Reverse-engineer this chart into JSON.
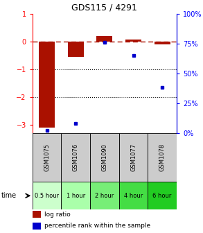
{
  "title": "GDS115 / 4291",
  "samples": [
    "GSM1075",
    "GSM1076",
    "GSM1090",
    "GSM1077",
    "GSM1078"
  ],
  "time_labels": [
    "0.5 hour",
    "1 hour",
    "2 hour",
    "4 hour",
    "6 hour"
  ],
  "time_colors": [
    "#ccffcc",
    "#aaffaa",
    "#77ee77",
    "#44dd44",
    "#22cc22"
  ],
  "log_ratios": [
    -3.1,
    -0.55,
    0.2,
    0.07,
    -0.1
  ],
  "percentile_ranks": [
    2,
    8,
    76,
    65,
    38
  ],
  "ylim_left": [
    -3.3,
    1.0
  ],
  "ylim_right": [
    0,
    100
  ],
  "bar_color": "#aa1100",
  "dot_color": "#0000cc",
  "dashed_line_color": "#aa1100",
  "bg_color": "#ffffff",
  "sample_bg_color": "#cccccc",
  "grid_color": "#000000",
  "title_fontsize": 9,
  "tick_fontsize": 7,
  "sample_fontsize": 6,
  "time_fontsize": 6
}
